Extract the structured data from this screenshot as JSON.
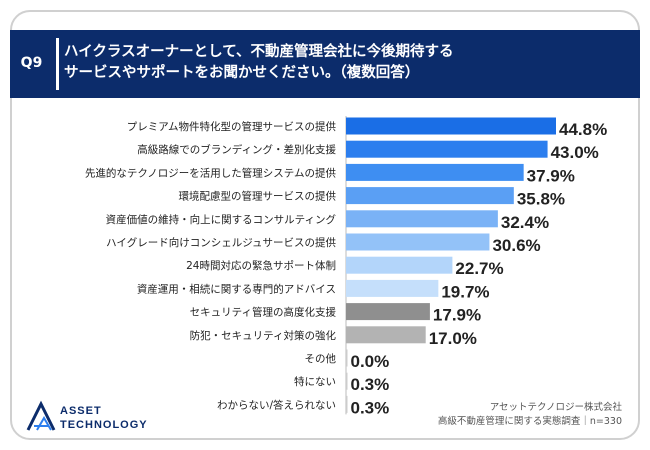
{
  "header": {
    "question_tag": "Q9",
    "question_line1": "ハイクラスオーナーとして、不動産管理会社に今後期待する",
    "question_line2": "サービスやサポートをお聞かせください。（複数回答）"
  },
  "footer": {
    "company": "アセットテクノロジー株式会社",
    "survey": "高級不動産管理に関する実態調査｜n=330",
    "logo_line1": "ASSET",
    "logo_line2": "TECHNOLOGY"
  },
  "chart_data": {
    "type": "bar",
    "orientation": "horizontal",
    "categories": [
      "プレミアム物件特化型の管理サービスの提供",
      "高級路線でのブランディング・差別化支援",
      "先進的なテクノロジーを活用した管理システムの提供",
      "環境配慮型の管理サービスの提供",
      "資産価値の維持・向上に関するコンサルティング",
      "ハイグレード向けコンシェルジュサービスの提供",
      "24時間対応の緊急サポート体制",
      "資産運用・相続に関する専門的アドバイス",
      "セキュリティ管理の高度化支援",
      "防犯・セキュリティ対策の強化",
      "その他",
      "特にない",
      "わからない/答えられない"
    ],
    "values": [
      44.8,
      43.0,
      37.9,
      35.8,
      32.4,
      30.6,
      22.7,
      19.7,
      17.9,
      17.0,
      0.0,
      0.3,
      0.3
    ],
    "value_labels": [
      "44.8%",
      "43.0%",
      "37.9%",
      "35.8%",
      "32.4%",
      "30.6%",
      "22.7%",
      "19.7%",
      "17.9%",
      "17.0%",
      "0.0%",
      "0.3%",
      "0.3%"
    ],
    "colors": [
      "#1a6ee6",
      "#2c7eee",
      "#3e8ef2",
      "#5a9ff4",
      "#7ab2f6",
      "#93c2f8",
      "#b3d5fa",
      "#c5dffb",
      "#8f8f8f",
      "#b3b3b3",
      "#cccccc",
      "#cccccc",
      "#cccccc"
    ],
    "xlim": [
      0,
      50
    ],
    "grid": false,
    "legend": "none"
  }
}
